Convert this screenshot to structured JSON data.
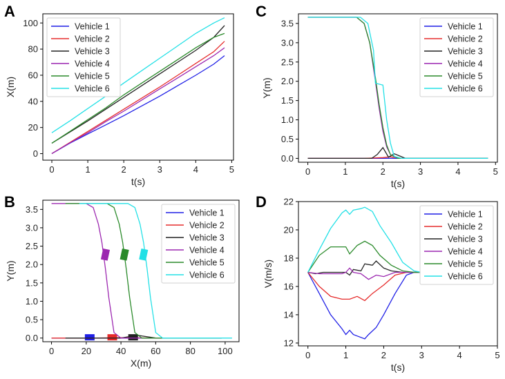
{
  "colors": {
    "Vehicle 1": "#1f1fe6",
    "Vehicle 2": "#e62b2b",
    "Vehicle 3": "#222222",
    "Vehicle 4": "#9c27b0",
    "Vehicle 5": "#2a8a2a",
    "Vehicle 6": "#22e0e6"
  },
  "chart_data": [
    {
      "panel": "A",
      "type": "line",
      "xlabel": "t(s)",
      "ylabel": "X(m)",
      "xlim": [
        -0.25,
        5.05
      ],
      "ylim": [
        -5,
        107
      ],
      "xticks": [
        0,
        1,
        2,
        3,
        4,
        5
      ],
      "yticks": [
        0,
        20,
        40,
        60,
        80,
        100
      ],
      "legend_position": "upper-left",
      "series": [
        {
          "name": "Vehicle 1",
          "x": [
            0,
            0.5,
            1,
            1.5,
            2,
            2.5,
            3,
            3.5,
            4,
            4.5,
            4.8
          ],
          "y": [
            0,
            8,
            15,
            22,
            29,
            36.5,
            44,
            52,
            60,
            68.5,
            75
          ]
        },
        {
          "name": "Vehicle 2",
          "x": [
            0,
            0.5,
            1,
            1.5,
            2,
            2.5,
            3,
            3.5,
            4,
            4.5,
            4.8
          ],
          "y": [
            0,
            8.5,
            17,
            25.5,
            34,
            42.5,
            51,
            60,
            69,
            78,
            86
          ]
        },
        {
          "name": "Vehicle 3",
          "x": [
            0,
            0.5,
            1,
            1.5,
            2,
            2.5,
            3,
            3.5,
            4,
            4.5,
            4.8
          ],
          "y": [
            8,
            16.5,
            25,
            34,
            43,
            52,
            61,
            70,
            79,
            89,
            98
          ]
        },
        {
          "name": "Vehicle 4",
          "x": [
            0,
            0.5,
            1,
            1.5,
            2,
            2.5,
            3,
            3.5,
            4,
            4.5,
            4.8
          ],
          "y": [
            0,
            8.2,
            16,
            24.5,
            32.5,
            41,
            49.5,
            58,
            66.5,
            75,
            81
          ]
        },
        {
          "name": "Vehicle 5",
          "x": [
            0,
            0.5,
            1,
            1.5,
            2,
            2.5,
            3,
            3.5,
            4,
            4.5,
            4.8
          ],
          "y": [
            8,
            17,
            26,
            35,
            45,
            54,
            63,
            72,
            81,
            89,
            92
          ]
        },
        {
          "name": "Vehicle 6",
          "x": [
            0,
            0.5,
            1,
            1.5,
            2,
            2.5,
            3,
            3.5,
            4,
            4.5,
            4.8
          ],
          "y": [
            16,
            25,
            34.5,
            44,
            54,
            63.5,
            73,
            82.5,
            92,
            100,
            104
          ]
        }
      ]
    },
    {
      "panel": "B",
      "type": "line",
      "xlabel": "X(m)",
      "ylabel": "Y(m)",
      "xlim": [
        -5,
        108
      ],
      "ylim": [
        -0.1,
        3.75
      ],
      "xticks": [
        0,
        20,
        40,
        60,
        80,
        100
      ],
      "yticks": [
        0.0,
        0.5,
        1.0,
        1.5,
        2.0,
        2.5,
        3.0,
        3.5
      ],
      "legend_position": "upper-right",
      "series": [
        {
          "name": "Vehicle 1",
          "x": [
            0,
            20,
            40,
            60,
            75
          ],
          "y": [
            0,
            0,
            0,
            0,
            0
          ],
          "box": [
            22,
            0.02
          ]
        },
        {
          "name": "Vehicle 2",
          "x": [
            0,
            25,
            40,
            60,
            86
          ],
          "y": [
            0,
            0,
            0.01,
            0,
            0
          ],
          "box": [
            35,
            0.02
          ]
        },
        {
          "name": "Vehicle 3",
          "x": [
            8,
            40,
            45,
            50,
            60,
            98
          ],
          "y": [
            0,
            0,
            0.04,
            0.07,
            0,
            0
          ],
          "box": [
            47,
            0.02
          ]
        },
        {
          "name": "Vehicle 4",
          "x": [
            0,
            20,
            24,
            27,
            29,
            31,
            33,
            36,
            40,
            81
          ],
          "y": [
            3.66,
            3.66,
            3.55,
            3.1,
            2.6,
            1.9,
            1.1,
            0.15,
            0,
            0
          ],
          "box": [
            31,
            2.27
          ]
        },
        {
          "name": "Vehicle 5",
          "x": [
            8,
            32,
            36,
            39,
            41,
            43,
            45,
            48,
            52,
            92
          ],
          "y": [
            3.66,
            3.66,
            3.55,
            3.1,
            2.6,
            1.9,
            1.1,
            0.15,
            0,
            0
          ],
          "box": [
            42,
            2.27
          ]
        },
        {
          "name": "Vehicle 6",
          "x": [
            16,
            44,
            48,
            51,
            53,
            55,
            57,
            60,
            64,
            104
          ],
          "y": [
            3.66,
            3.66,
            3.55,
            3.1,
            2.6,
            1.9,
            1.1,
            0.15,
            0,
            0
          ],
          "box": [
            53,
            2.27
          ]
        }
      ]
    },
    {
      "panel": "C",
      "type": "line",
      "xlabel": "t(s)",
      "ylabel": "Y(m)",
      "xlim": [
        -0.25,
        5.05
      ],
      "ylim": [
        -0.1,
        3.75
      ],
      "xticks": [
        0,
        1,
        2,
        3,
        4,
        5
      ],
      "yticks": [
        0.0,
        0.5,
        1.0,
        1.5,
        2.0,
        2.5,
        3.0,
        3.5
      ],
      "legend_position": "upper-right",
      "series": [
        {
          "name": "Vehicle 1",
          "x": [
            0,
            1,
            2,
            3,
            4,
            4.8
          ],
          "y": [
            0,
            0,
            0,
            0,
            0,
            0
          ]
        },
        {
          "name": "Vehicle 2",
          "x": [
            0,
            1.5,
            2.0,
            2.2,
            2.5,
            4.8
          ],
          "y": [
            0,
            0,
            0.02,
            0.04,
            0,
            0
          ]
        },
        {
          "name": "Vehicle 3",
          "x": [
            0,
            1.7,
            1.85,
            2.0,
            2.15,
            2.3,
            2.4,
            2.6,
            4.8
          ],
          "y": [
            0,
            0,
            0.1,
            0.28,
            0.03,
            0.12,
            0.08,
            0,
            0
          ]
        },
        {
          "name": "Vehicle 4",
          "x": [
            0,
            1.3,
            1.5,
            1.65,
            1.8,
            1.9,
            2.0,
            2.1,
            2.2,
            2.4,
            4.8
          ],
          "y": [
            3.66,
            3.66,
            3.5,
            3.0,
            2.0,
            1.3,
            0.7,
            0.3,
            0.1,
            0,
            0
          ]
        },
        {
          "name": "Vehicle 5",
          "x": [
            0,
            1.3,
            1.5,
            1.65,
            1.8,
            1.9,
            2.0,
            2.1,
            2.2,
            2.4,
            4.8
          ],
          "y": [
            3.66,
            3.66,
            3.5,
            3.0,
            2.1,
            1.4,
            0.8,
            0.35,
            0.1,
            0,
            0
          ]
        },
        {
          "name": "Vehicle 6",
          "x": [
            0,
            1.4,
            1.6,
            1.75,
            1.8,
            2.0,
            2.1,
            2.2,
            2.3,
            2.5,
            4.8
          ],
          "y": [
            3.66,
            3.66,
            3.5,
            2.8,
            1.95,
            1.9,
            1.0,
            0.4,
            0.05,
            0,
            0
          ]
        }
      ]
    },
    {
      "panel": "D",
      "type": "line",
      "xlabel": "t(s)",
      "ylabel": "V(m/s)",
      "xlim": [
        -0.25,
        5.0
      ],
      "ylim": [
        11.8,
        22.0
      ],
      "xticks": [
        0,
        1,
        2,
        3,
        4,
        5
      ],
      "yticks": [
        12,
        14,
        16,
        18,
        20,
        22
      ],
      "legend_position": "upper-right",
      "series": [
        {
          "name": "Vehicle 1",
          "x": [
            0,
            0.3,
            0.6,
            0.9,
            1.0,
            1.1,
            1.2,
            1.3,
            1.5,
            1.6,
            1.8,
            2.0,
            2.3,
            2.6,
            2.8,
            3.0
          ],
          "y": [
            17,
            15.5,
            14,
            13,
            12.6,
            12.9,
            12.6,
            12.5,
            12.3,
            12.6,
            13.1,
            14,
            15.5,
            16.8,
            17,
            17
          ]
        },
        {
          "name": "Vehicle 2",
          "x": [
            0,
            0.3,
            0.6,
            0.9,
            1.1,
            1.3,
            1.5,
            1.7,
            1.8,
            2.0,
            2.3,
            2.6,
            3.0
          ],
          "y": [
            17,
            16,
            15.3,
            15.1,
            15.1,
            15.3,
            15.0,
            15.5,
            15.7,
            16.1,
            16.8,
            17,
            17
          ]
        },
        {
          "name": "Vehicle 3",
          "x": [
            0,
            0.2,
            0.4,
            0.6,
            0.8,
            1.0,
            1.1,
            1.2,
            1.4,
            1.5,
            1.7,
            1.8,
            2.0,
            2.2,
            2.5,
            3.0
          ],
          "y": [
            17,
            16.9,
            17,
            17,
            17,
            17,
            16.8,
            17.2,
            17.1,
            17.6,
            17.5,
            17.8,
            17.3,
            17.1,
            17,
            17
          ]
        },
        {
          "name": "Vehicle 4",
          "x": [
            0,
            0.3,
            0.6,
            0.9,
            1.0,
            1.1,
            1.2,
            1.4,
            1.6,
            1.8,
            2.0,
            2.3,
            2.6,
            3.0
          ],
          "y": [
            17,
            16.9,
            16.9,
            16.9,
            17.0,
            17.3,
            17.0,
            16.9,
            16.5,
            16.8,
            16.7,
            17,
            17,
            17
          ]
        },
        {
          "name": "Vehicle 5",
          "x": [
            0,
            0.3,
            0.6,
            0.9,
            1.0,
            1.1,
            1.3,
            1.5,
            1.7,
            1.9,
            2.2,
            2.5,
            2.8,
            3.0
          ],
          "y": [
            17,
            18.2,
            18.8,
            18.8,
            18.8,
            18.3,
            18.9,
            19.2,
            18.9,
            18.2,
            17.5,
            17.1,
            17,
            17
          ]
        },
        {
          "name": "Vehicle 6",
          "x": [
            0,
            0.3,
            0.6,
            0.9,
            1.0,
            1.1,
            1.2,
            1.4,
            1.5,
            1.7,
            1.9,
            2.2,
            2.5,
            2.8,
            3.0
          ],
          "y": [
            17,
            18.6,
            20.1,
            21.2,
            21.4,
            21.1,
            21.4,
            21.5,
            21.6,
            21.3,
            20.3,
            19.1,
            17.7,
            17.1,
            17
          ]
        }
      ]
    }
  ]
}
